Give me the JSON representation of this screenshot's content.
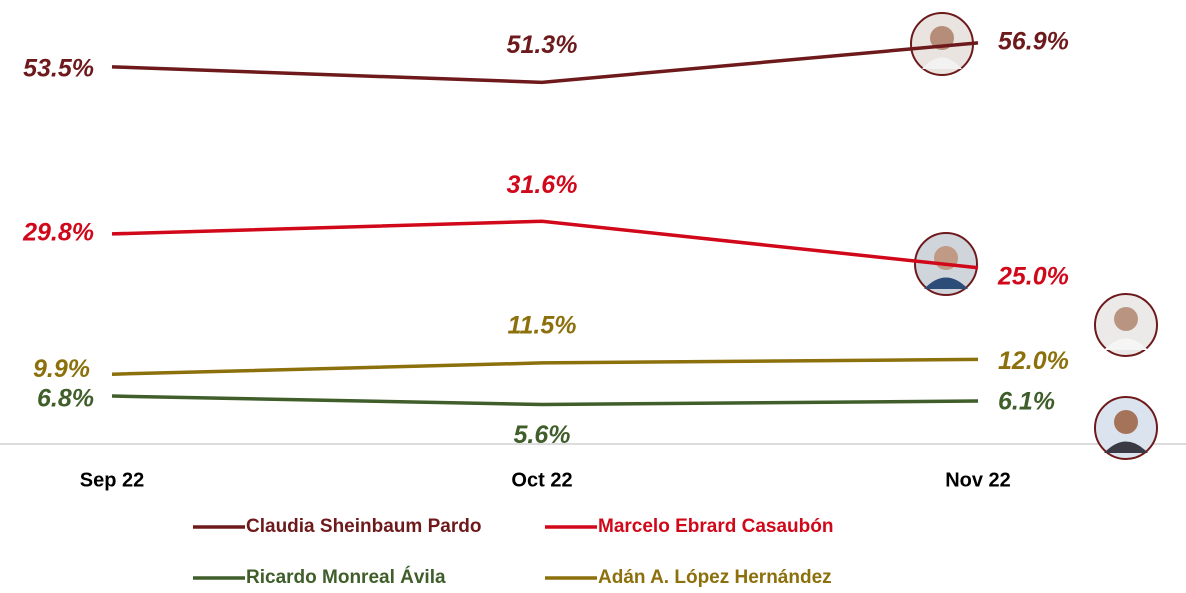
{
  "chart_data": {
    "type": "line",
    "categories": [
      "Sep 22",
      "Oct 22",
      "Nov 22"
    ],
    "series": [
      {
        "name": "Claudia Sheinbaum Pardo",
        "color": "#6e1a1c",
        "values": [
          53.5,
          51.3,
          56.9
        ],
        "value_labels": [
          "53.5%",
          "51.3%",
          "56.9%"
        ]
      },
      {
        "name": "Marcelo Ebrard Casaubón",
        "color": "#d0081a",
        "values": [
          29.8,
          31.6,
          25.0
        ],
        "value_labels": [
          "29.8%",
          "31.6%",
          "25.0%"
        ]
      },
      {
        "name": "Ricardo Monreal Ávila",
        "color": "#3f5e2a",
        "values": [
          6.8,
          5.6,
          6.1
        ],
        "value_labels": [
          "6.8%",
          "5.6%",
          "6.1%"
        ]
      },
      {
        "name": "Adán A. López Hernández",
        "color": "#8c700c",
        "values": [
          9.9,
          11.5,
          12.0
        ],
        "value_labels": [
          "9.9%",
          "11.5%",
          "12.0%"
        ]
      }
    ],
    "ylim": [
      0,
      60
    ]
  }
}
